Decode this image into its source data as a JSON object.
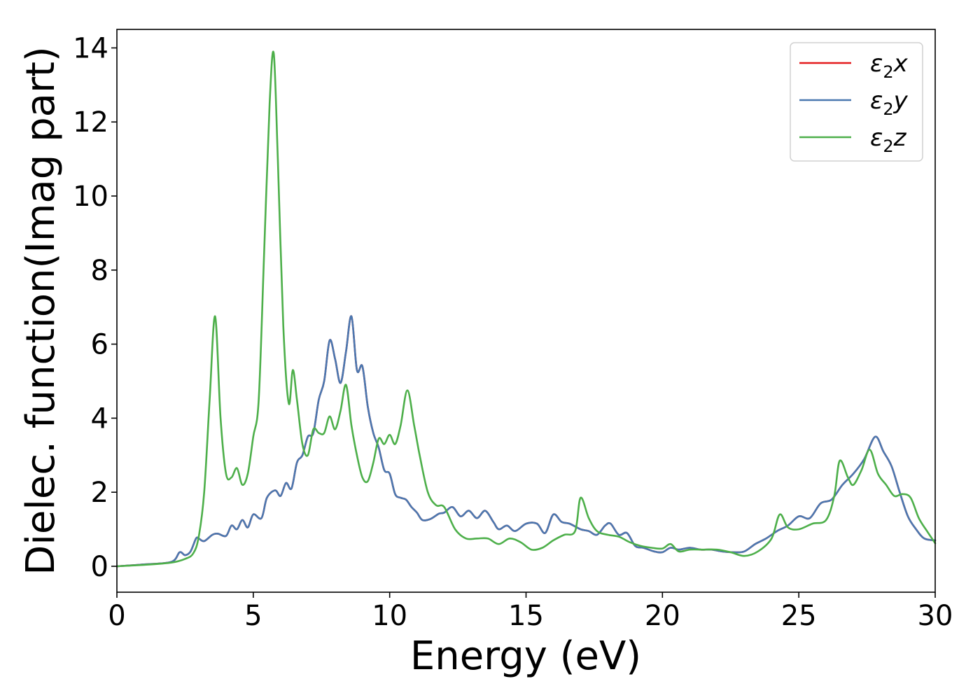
{
  "chart_data": {
    "type": "line",
    "title": "",
    "xlabel": "Energy (eV)",
    "ylabel": "Dielec. function(Imag part)",
    "xlim": [
      0,
      30
    ],
    "ylim": [
      -0.7,
      14.5
    ],
    "xticks": [
      0,
      5,
      10,
      15,
      20,
      25,
      30
    ],
    "yticks": [
      0,
      2,
      4,
      6,
      8,
      10,
      12,
      14
    ],
    "grid": false,
    "legend_position": "top-right",
    "series": [
      {
        "name": "ε₂x",
        "legend_base": "ε",
        "legend_sub": "2",
        "legend_var": "x",
        "color": "#e41a1c",
        "x": [
          0,
          1,
          2,
          2.3,
          2.5,
          2.7,
          2.9,
          3.0,
          3.2,
          3.5,
          3.7,
          4.0,
          4.2,
          4.4,
          4.6,
          4.8,
          5.0,
          5.3,
          5.5,
          5.8,
          6.0,
          6.2,
          6.4,
          6.6,
          6.8,
          7.0,
          7.2,
          7.4,
          7.6,
          7.8,
          8.0,
          8.2,
          8.4,
          8.6,
          8.8,
          9.0,
          9.2,
          9.4,
          9.6,
          9.8,
          10.0,
          10.2,
          10.4,
          10.6,
          10.8,
          11.0,
          11.2,
          11.5,
          11.8,
          12.0,
          12.3,
          12.6,
          12.9,
          13.2,
          13.5,
          13.8,
          14.0,
          14.3,
          14.6,
          15.0,
          15.4,
          15.7,
          16.0,
          16.3,
          16.6,
          17.0,
          17.3,
          17.6,
          17.9,
          18.1,
          18.4,
          18.7,
          19.0,
          19.3,
          19.7,
          20.0,
          20.3,
          20.6,
          21.0,
          21.4,
          21.8,
          22.2,
          22.6,
          23.0,
          23.4,
          23.8,
          24.2,
          24.6,
          25.0,
          25.4,
          25.8,
          26.2,
          26.6,
          27.0,
          27.4,
          27.8,
          28.1,
          28.4,
          28.7,
          29.0,
          29.3,
          29.6,
          30.0
        ],
        "y": [
          0,
          0.05,
          0.12,
          0.38,
          0.3,
          0.4,
          0.75,
          0.75,
          0.68,
          0.85,
          0.88,
          0.82,
          1.1,
          1.0,
          1.25,
          1.05,
          1.4,
          1.3,
          1.85,
          2.05,
          1.9,
          2.25,
          2.1,
          2.8,
          3.0,
          3.5,
          3.6,
          4.5,
          5.0,
          6.1,
          5.6,
          4.95,
          5.8,
          6.75,
          5.3,
          5.4,
          4.3,
          3.6,
          3.2,
          2.6,
          2.5,
          1.95,
          1.85,
          1.8,
          1.6,
          1.45,
          1.25,
          1.28,
          1.42,
          1.45,
          1.6,
          1.35,
          1.5,
          1.3,
          1.5,
          1.2,
          1.0,
          1.1,
          0.95,
          1.15,
          1.15,
          0.9,
          1.4,
          1.2,
          1.15,
          1.0,
          0.95,
          0.85,
          1.1,
          1.15,
          0.85,
          0.9,
          0.55,
          0.5,
          0.4,
          0.38,
          0.5,
          0.45,
          0.5,
          0.45,
          0.45,
          0.4,
          0.38,
          0.4,
          0.6,
          0.75,
          0.95,
          1.1,
          1.35,
          1.3,
          1.7,
          1.8,
          2.2,
          2.5,
          2.9,
          3.5,
          3.1,
          2.7,
          2.0,
          1.35,
          1.0,
          0.75,
          0.7
        ]
      },
      {
        "name": "ε₂y",
        "legend_base": "ε",
        "legend_sub": "2",
        "legend_var": "y",
        "color": "#4a78b0",
        "x": [
          0,
          1,
          2,
          2.3,
          2.5,
          2.7,
          2.9,
          3.0,
          3.2,
          3.5,
          3.7,
          4.0,
          4.2,
          4.4,
          4.6,
          4.8,
          5.0,
          5.3,
          5.5,
          5.8,
          6.0,
          6.2,
          6.4,
          6.6,
          6.8,
          7.0,
          7.2,
          7.4,
          7.6,
          7.8,
          8.0,
          8.2,
          8.4,
          8.6,
          8.8,
          9.0,
          9.2,
          9.4,
          9.6,
          9.8,
          10.0,
          10.2,
          10.4,
          10.6,
          10.8,
          11.0,
          11.2,
          11.5,
          11.8,
          12.0,
          12.3,
          12.6,
          12.9,
          13.2,
          13.5,
          13.8,
          14.0,
          14.3,
          14.6,
          15.0,
          15.4,
          15.7,
          16.0,
          16.3,
          16.6,
          17.0,
          17.3,
          17.6,
          17.9,
          18.1,
          18.4,
          18.7,
          19.0,
          19.3,
          19.7,
          20.0,
          20.3,
          20.6,
          21.0,
          21.4,
          21.8,
          22.2,
          22.6,
          23.0,
          23.4,
          23.8,
          24.2,
          24.6,
          25.0,
          25.4,
          25.8,
          26.2,
          26.6,
          27.0,
          27.4,
          27.8,
          28.1,
          28.4,
          28.7,
          29.0,
          29.3,
          29.6,
          30.0
        ],
        "y": [
          0,
          0.05,
          0.12,
          0.38,
          0.3,
          0.4,
          0.75,
          0.75,
          0.68,
          0.85,
          0.88,
          0.82,
          1.1,
          1.0,
          1.25,
          1.05,
          1.4,
          1.3,
          1.85,
          2.05,
          1.9,
          2.25,
          2.1,
          2.8,
          3.0,
          3.5,
          3.6,
          4.5,
          5.0,
          6.1,
          5.6,
          4.95,
          5.8,
          6.75,
          5.3,
          5.4,
          4.3,
          3.6,
          3.2,
          2.6,
          2.5,
          1.95,
          1.85,
          1.8,
          1.6,
          1.45,
          1.25,
          1.28,
          1.42,
          1.45,
          1.6,
          1.35,
          1.5,
          1.3,
          1.5,
          1.2,
          1.0,
          1.1,
          0.95,
          1.15,
          1.15,
          0.9,
          1.4,
          1.2,
          1.15,
          1.0,
          0.95,
          0.85,
          1.1,
          1.15,
          0.85,
          0.9,
          0.55,
          0.5,
          0.4,
          0.38,
          0.5,
          0.45,
          0.5,
          0.45,
          0.45,
          0.4,
          0.38,
          0.4,
          0.6,
          0.75,
          0.95,
          1.1,
          1.35,
          1.3,
          1.7,
          1.8,
          2.2,
          2.5,
          2.9,
          3.5,
          3.1,
          2.7,
          2.0,
          1.35,
          1.0,
          0.75,
          0.7
        ]
      },
      {
        "name": "ε₂z",
        "legend_base": "ε",
        "legend_sub": "2",
        "legend_var": "z",
        "color": "#4daf4a",
        "x": [
          0,
          1,
          2,
          2.5,
          2.8,
          3.0,
          3.2,
          3.4,
          3.6,
          3.8,
          4.0,
          4.2,
          4.4,
          4.6,
          4.8,
          5.0,
          5.2,
          5.4,
          5.6,
          5.75,
          5.9,
          6.1,
          6.3,
          6.45,
          6.6,
          6.8,
          7.0,
          7.2,
          7.4,
          7.6,
          7.8,
          8.0,
          8.2,
          8.4,
          8.6,
          8.8,
          9.0,
          9.2,
          9.4,
          9.6,
          9.8,
          10.0,
          10.2,
          10.4,
          10.65,
          10.9,
          11.1,
          11.4,
          11.7,
          12.0,
          12.4,
          12.8,
          13.2,
          13.6,
          14.0,
          14.4,
          14.8,
          15.2,
          15.6,
          16.0,
          16.4,
          16.8,
          17.0,
          17.3,
          17.6,
          18.0,
          18.4,
          18.8,
          19.2,
          19.6,
          20.0,
          20.3,
          20.6,
          21.0,
          21.5,
          22.0,
          22.5,
          23.0,
          23.5,
          24.0,
          24.3,
          24.6,
          25.0,
          25.5,
          26.0,
          26.3,
          26.5,
          26.8,
          27.0,
          27.3,
          27.6,
          27.9,
          28.2,
          28.5,
          28.8,
          29.1,
          29.4,
          29.7,
          30.0
        ],
        "y": [
          0,
          0.04,
          0.1,
          0.2,
          0.35,
          0.8,
          2.0,
          4.5,
          6.75,
          4.0,
          2.5,
          2.4,
          2.65,
          2.2,
          2.5,
          3.5,
          4.5,
          8.5,
          12.5,
          13.85,
          11.0,
          6.5,
          4.4,
          5.3,
          4.5,
          3.3,
          3.0,
          3.7,
          3.6,
          3.6,
          4.05,
          3.7,
          4.2,
          4.9,
          3.8,
          3.0,
          2.4,
          2.3,
          2.8,
          3.45,
          3.3,
          3.55,
          3.3,
          3.8,
          4.75,
          3.8,
          3.0,
          2.0,
          1.65,
          1.6,
          1.0,
          0.75,
          0.75,
          0.75,
          0.6,
          0.75,
          0.65,
          0.45,
          0.5,
          0.7,
          0.85,
          0.95,
          1.85,
          1.3,
          0.95,
          0.85,
          0.8,
          0.65,
          0.55,
          0.5,
          0.48,
          0.6,
          0.4,
          0.45,
          0.45,
          0.45,
          0.38,
          0.28,
          0.4,
          0.75,
          1.4,
          1.05,
          1.0,
          1.15,
          1.25,
          1.9,
          2.85,
          2.4,
          2.2,
          2.6,
          3.15,
          2.5,
          2.2,
          1.9,
          1.95,
          1.85,
          1.3,
          0.95,
          0.62
        ]
      }
    ]
  }
}
